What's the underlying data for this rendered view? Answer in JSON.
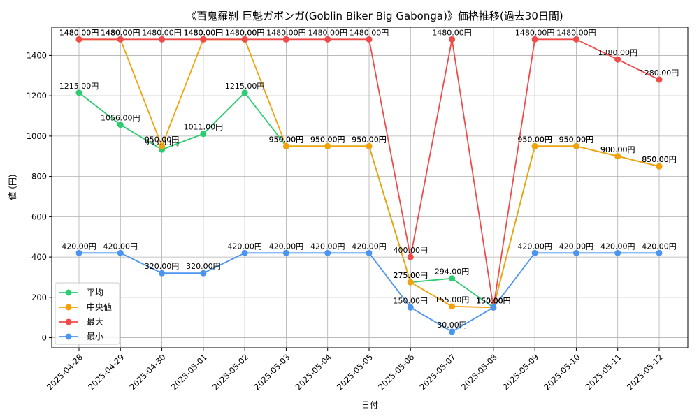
{
  "chart_data": {
    "type": "line",
    "title": "《百鬼羅刹 巨魁ガボンガ(Goblin Biker Big Gabonga)》価格推移(過去30日間)",
    "xlabel": "日付",
    "ylabel": "値 (円)",
    "ylim": [
      -50,
      1540
    ],
    "yticks": [
      0,
      200,
      400,
      600,
      800,
      1000,
      1200,
      1400
    ],
    "grid": true,
    "legend_position": "lower-left",
    "label_suffix": "円",
    "categories": [
      "2025-04-28",
      "2025-04-29",
      "2025-04-30",
      "2025-05-01",
      "2025-05-02",
      "2025-05-03",
      "2025-05-04",
      "2025-05-05",
      "2025-05-06",
      "2025-05-07",
      "2025-05-08",
      "2025-05-09",
      "2025-05-10",
      "2025-05-11",
      "2025-05-12"
    ],
    "series": [
      {
        "name": "平均",
        "color": "#2ecc71",
        "values": [
          1215,
          1056,
          933.33,
          1011,
          1215,
          950,
          950,
          950,
          275,
          294,
          150,
          950,
          950,
          900,
          850
        ],
        "labels": [
          "1215.00円",
          "1056.00円",
          "933.33円",
          "1011.00円",
          "1215.00円",
          "950.00円",
          "950.00円",
          "950.00円",
          "275.00円",
          "294.00円",
          "150.00円",
          "950.00円",
          "950.00円",
          "900.00円",
          "850.00円"
        ]
      },
      {
        "name": "中央値",
        "color": "#f5a20a",
        "values": [
          1480,
          1480,
          950,
          1480,
          1480,
          950,
          950,
          950,
          275,
          155,
          150,
          950,
          950,
          900,
          850
        ],
        "labels": [
          "1480.00円",
          "1480.00円",
          "950.00円",
          "1480.00円",
          "1480.00円",
          "950.00円",
          "950.00円",
          "950.00円",
          "275.00円",
          "155.00円",
          "150.00円",
          "950.00円",
          "950.00円",
          "900.00円",
          "850.00円"
        ]
      },
      {
        "name": "最大",
        "color": "#f04b4b",
        "values": [
          1480,
          1480,
          1480,
          1480,
          1480,
          1480,
          1480,
          1480,
          400,
          1480,
          150,
          1480,
          1480,
          1380,
          1280
        ],
        "labels": [
          "1480.00円",
          "1480.00円",
          "1480.00円",
          "1480.00円",
          "1480.00円",
          "1480.00円",
          "1480.00円",
          "1480.00円",
          "400.00円",
          "1480.00円",
          "150.00円",
          "1480.00円",
          "1480.00円",
          "1380.00円",
          "1280.00円"
        ]
      },
      {
        "name": "最小",
        "color": "#4b94f0",
        "values": [
          420,
          420,
          320,
          320,
          420,
          420,
          420,
          420,
          150,
          30,
          150,
          420,
          420,
          420,
          420
        ],
        "labels": [
          "420.00円",
          "420.00円",
          "320.00円",
          "320.00円",
          "420.00円",
          "420.00円",
          "420.00円",
          "420.00円",
          "150.00円",
          "30.00円",
          "150.00円",
          "420.00円",
          "420.00円",
          "420.00円",
          "420.00円"
        ]
      }
    ]
  }
}
